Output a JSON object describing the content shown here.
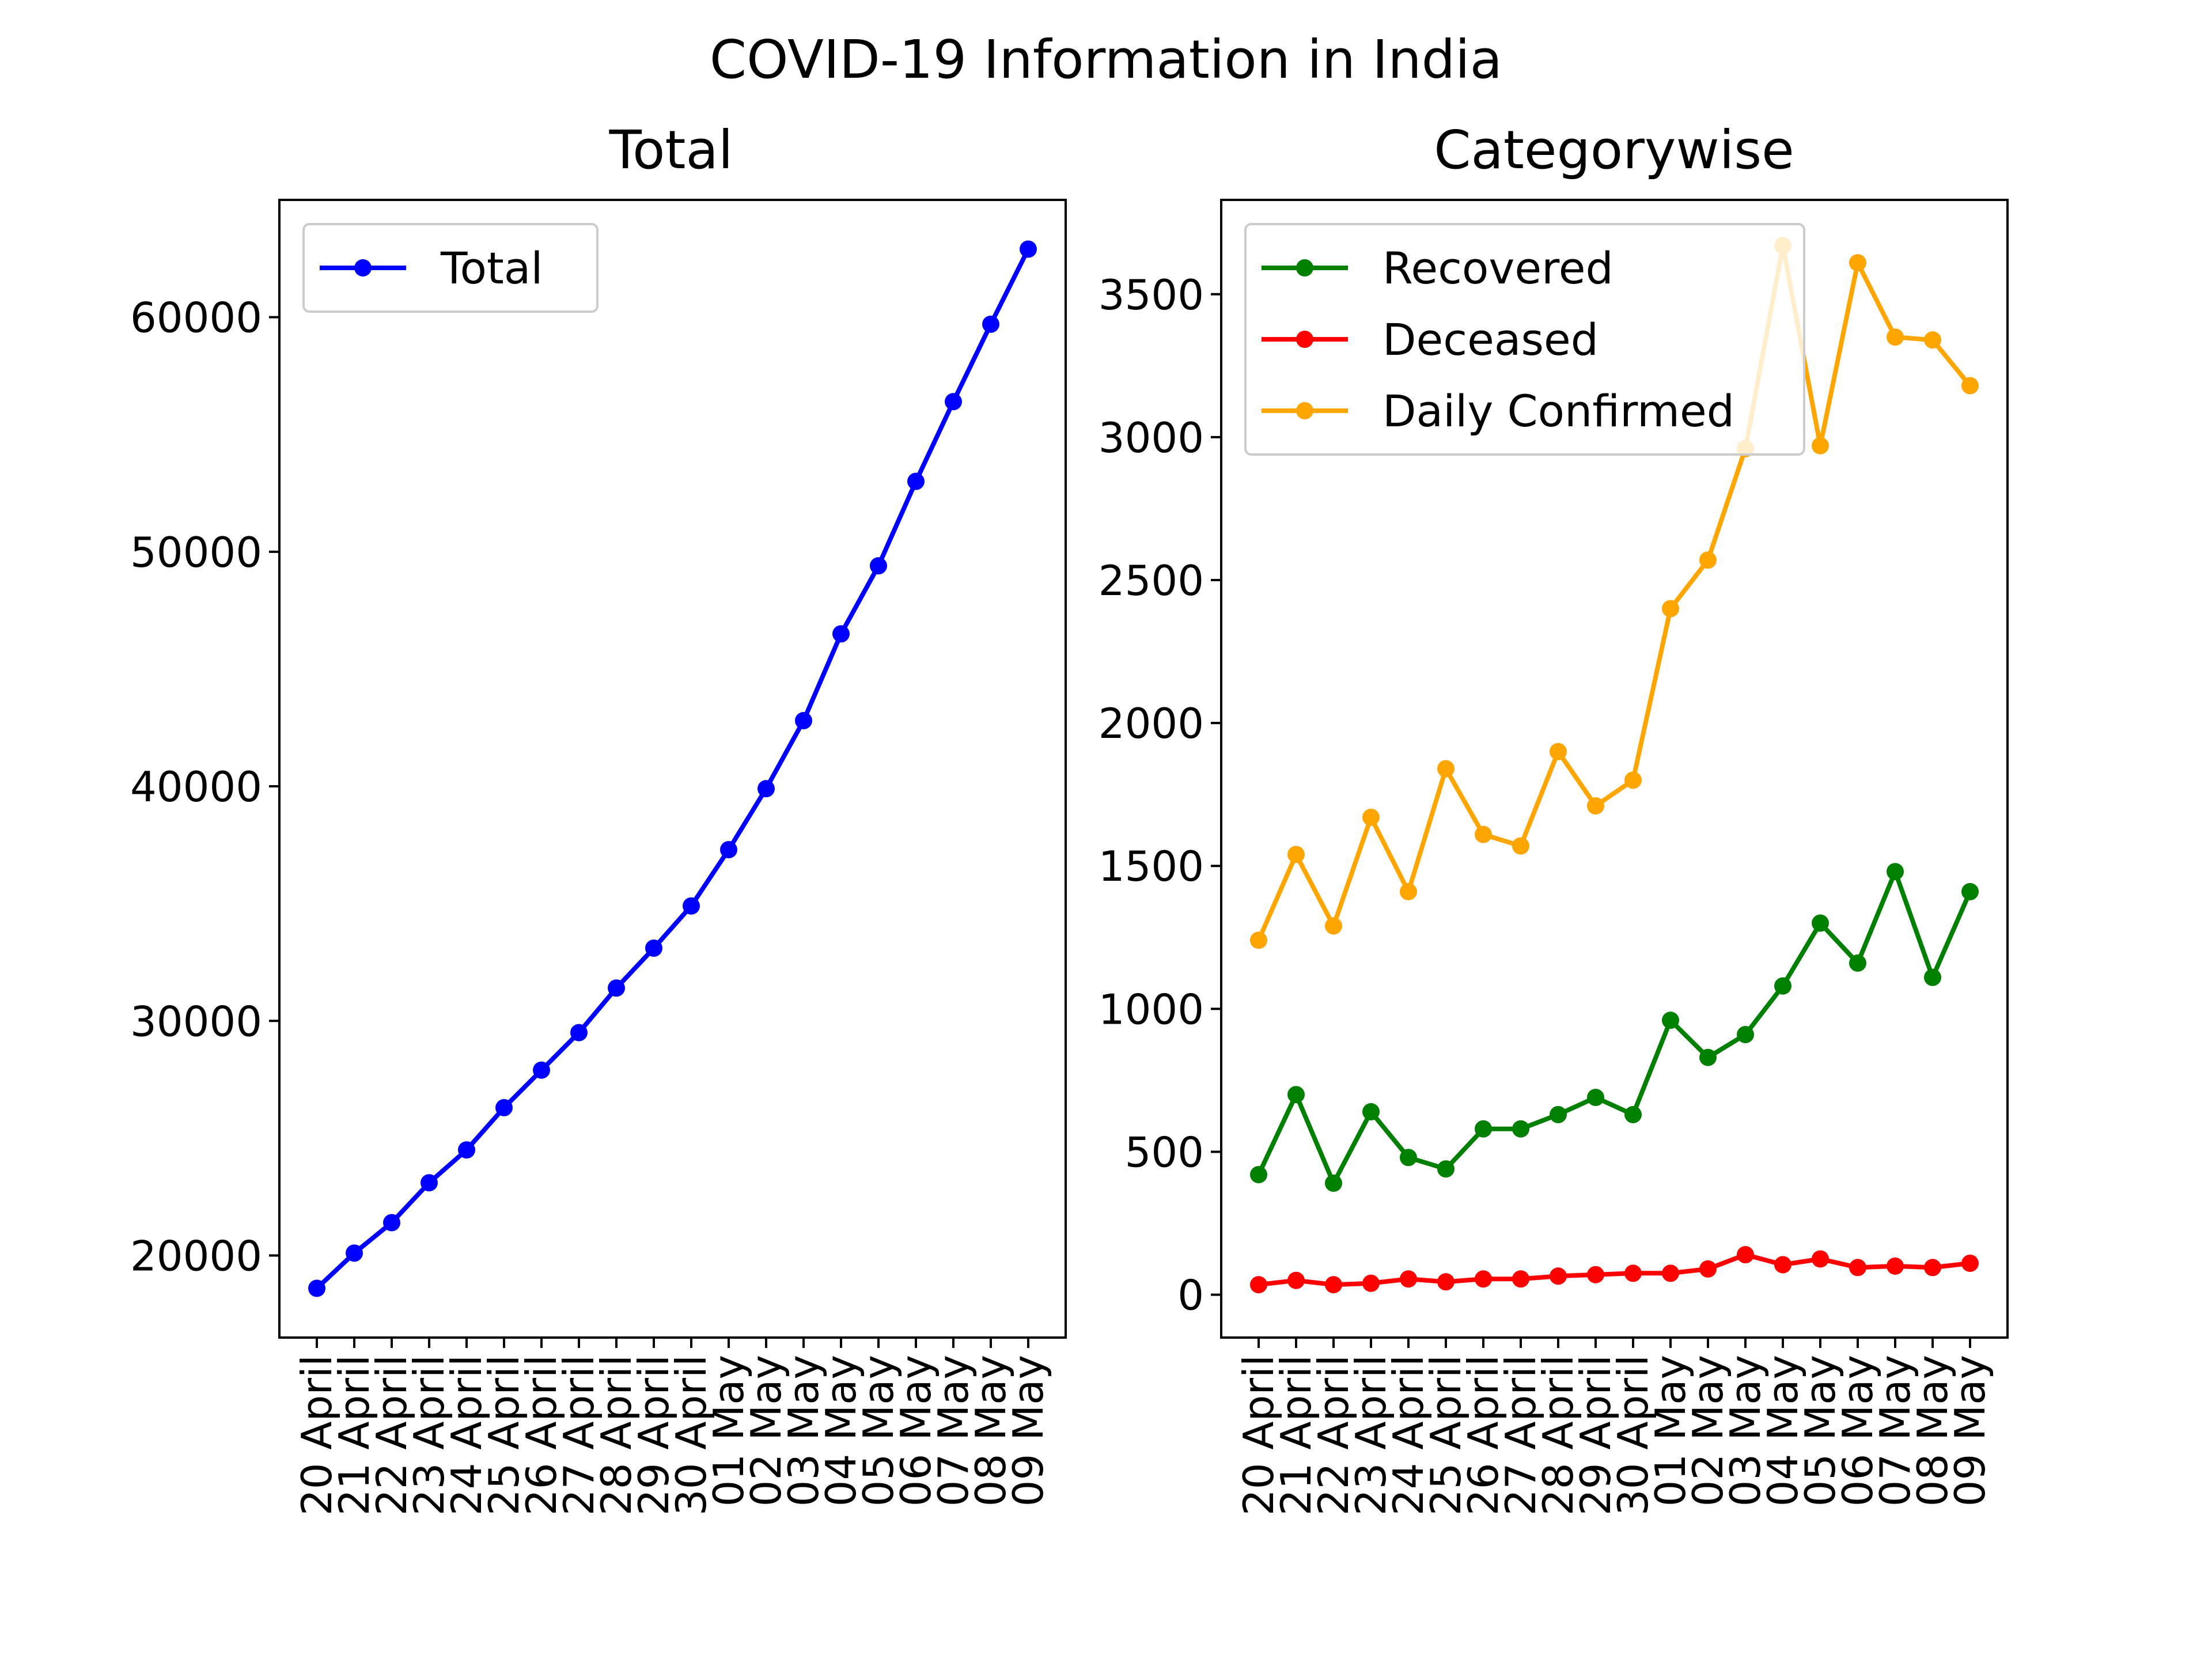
{
  "suptitle": "COVID-19 Information in India",
  "chart_data": [
    {
      "type": "line",
      "title": "Total",
      "xlabel": "",
      "ylabel": "",
      "categories": [
        "20 April",
        "21 April",
        "22 April",
        "23 April",
        "24 April",
        "25 April",
        "26 April",
        "27 April",
        "28 April",
        "29 April",
        "30 April",
        "01 May",
        "02 May",
        "03 May",
        "04 May",
        "05 May",
        "06 May",
        "07 May",
        "08 May",
        "09 May"
      ],
      "ylim": [
        16500,
        65000
      ],
      "yticks": [
        20000,
        30000,
        40000,
        50000,
        60000
      ],
      "legend_position": "top-left",
      "grid": false,
      "series": [
        {
          "name": "Total",
          "color": "#0000ff",
          "values": [
            18600,
            20100,
            21400,
            23100,
            24500,
            26300,
            27900,
            29500,
            31400,
            33100,
            34900,
            37300,
            39900,
            42800,
            46500,
            49400,
            53000,
            56400,
            59700,
            62900
          ]
        }
      ]
    },
    {
      "type": "line",
      "title": "Categorywise",
      "xlabel": "",
      "ylabel": "",
      "categories": [
        "20 April",
        "21 April",
        "22 April",
        "23 April",
        "24 April",
        "25 April",
        "26 April",
        "27 April",
        "28 April",
        "29 April",
        "30 April",
        "01 May",
        "02 May",
        "03 May",
        "04 May",
        "05 May",
        "06 May",
        "07 May",
        "08 May",
        "09 May"
      ],
      "ylim": [
        -150,
        3830
      ],
      "yticks": [
        0,
        500,
        1000,
        1500,
        2000,
        2500,
        3000,
        3500
      ],
      "legend_position": "top-left",
      "grid": false,
      "series": [
        {
          "name": "Recovered",
          "color": "#008000",
          "values": [
            420,
            700,
            390,
            640,
            480,
            440,
            580,
            580,
            630,
            690,
            630,
            960,
            830,
            910,
            1080,
            1300,
            1160,
            1480,
            1110,
            1410
          ]
        },
        {
          "name": "Deceased",
          "color": "#ff0000",
          "values": [
            35,
            50,
            35,
            40,
            55,
            45,
            55,
            55,
            65,
            70,
            75,
            75,
            90,
            140,
            105,
            125,
            95,
            100,
            95,
            110
          ]
        },
        {
          "name": "Daily Confirmed",
          "color": "#ffa500",
          "values": [
            1240,
            1540,
            1290,
            1670,
            1410,
            1840,
            1610,
            1570,
            1900,
            1710,
            1800,
            2400,
            2570,
            2960,
            3670,
            2970,
            3610,
            3350,
            3340,
            3180
          ]
        }
      ]
    }
  ]
}
